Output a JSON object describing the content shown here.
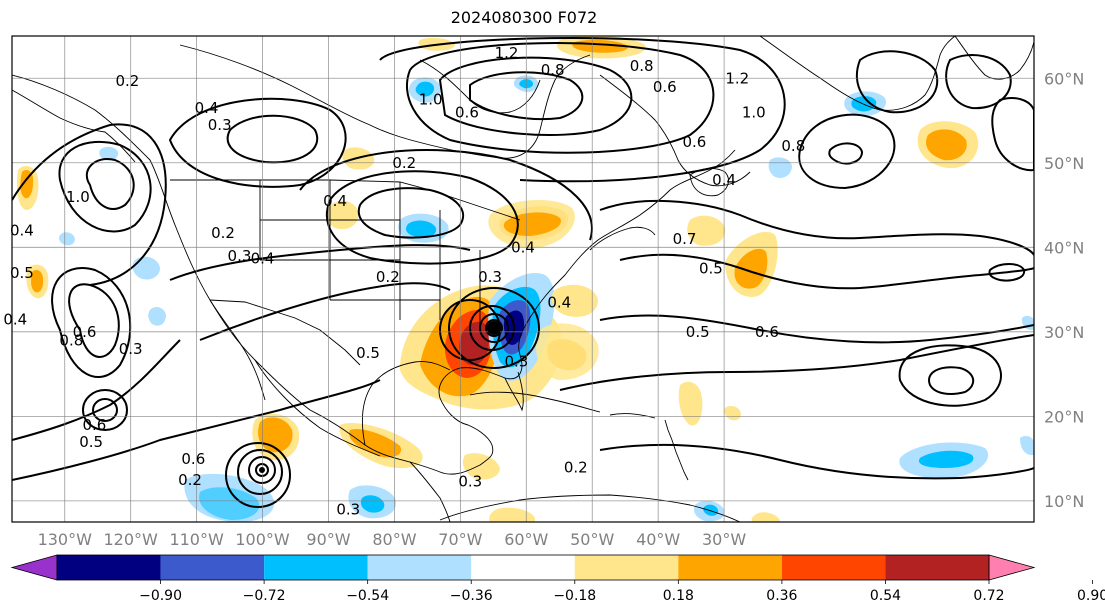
{
  "title": "2024080300 F072",
  "map": {
    "projection": "equirectangular",
    "lon_range": [
      -138,
      17
    ],
    "lat_range": [
      7.5,
      65
    ],
    "meridians": [
      -130,
      -120,
      -110,
      -100,
      -90,
      -80,
      -70,
      -60,
      -50,
      -40,
      -30
    ],
    "parallels": [
      10,
      20,
      30,
      40,
      50,
      60
    ],
    "lon_labels": [
      "130°W",
      "120°W",
      "110°W",
      "100°W",
      "90°W",
      "80°W",
      "70°W",
      "60°W",
      "50°W",
      "40°W",
      "30°W"
    ],
    "lat_labels": [
      "10°N",
      "20°N",
      "30°N",
      "40°N",
      "50°N",
      "60°N"
    ],
    "grid": true
  },
  "contour_labels": [
    {
      "text": "0.2",
      "lon": -120.5,
      "lat": 59.2
    },
    {
      "text": "0.4",
      "lon": -108.5,
      "lat": 56.0
    },
    {
      "text": "0.3",
      "lon": -106.5,
      "lat": 54.0
    },
    {
      "text": "0.2",
      "lon": -106.0,
      "lat": 41.2
    },
    {
      "text": "0.3",
      "lon": -103.5,
      "lat": 38.5
    },
    {
      "text": "0.4",
      "lon": -100.0,
      "lat": 38.2
    },
    {
      "text": "0.4",
      "lon": -136.5,
      "lat": 41.5
    },
    {
      "text": "0.5",
      "lon": -136.5,
      "lat": 36.5
    },
    {
      "text": "0.4",
      "lon": -137.5,
      "lat": 31.0
    },
    {
      "text": "0.8",
      "lon": -129.0,
      "lat": 28.5
    },
    {
      "text": "0.6",
      "lon": -127.0,
      "lat": 29.5
    },
    {
      "text": "0.3",
      "lon": -120.0,
      "lat": 27.5
    },
    {
      "text": "0.5",
      "lon": -126.0,
      "lat": 16.5
    },
    {
      "text": "0.6",
      "lon": -125.5,
      "lat": 18.5
    },
    {
      "text": "1.0",
      "lon": -128.0,
      "lat": 45.5
    },
    {
      "text": "0.4",
      "lon": -89.0,
      "lat": 45.0
    },
    {
      "text": "0.2",
      "lon": -78.5,
      "lat": 49.5
    },
    {
      "text": "0.6",
      "lon": -69.0,
      "lat": 55.5
    },
    {
      "text": "1.0",
      "lon": -74.5,
      "lat": 57.0
    },
    {
      "text": "1.2",
      "lon": -63.0,
      "lat": 62.5
    },
    {
      "text": "0.8",
      "lon": -56.0,
      "lat": 60.5
    },
    {
      "text": "0.4",
      "lon": -60.5,
      "lat": 39.5
    },
    {
      "text": "0.3",
      "lon": -65.5,
      "lat": 36.0
    },
    {
      "text": "0.4",
      "lon": -55.0,
      "lat": 33.0
    },
    {
      "text": "0.3",
      "lon": -61.5,
      "lat": 26.0
    },
    {
      "text": "0.2",
      "lon": -52.5,
      "lat": 13.5
    },
    {
      "text": "0.3",
      "lon": -68.5,
      "lat": 11.8
    },
    {
      "text": "0.3",
      "lon": -87.0,
      "lat": 8.5
    },
    {
      "text": "0.2",
      "lon": -81.0,
      "lat": 36.0
    },
    {
      "text": "0.5",
      "lon": -84.0,
      "lat": 27.0
    },
    {
      "text": "0.6",
      "lon": -110.5,
      "lat": 14.5
    },
    {
      "text": "0.2",
      "lon": -111.0,
      "lat": 12.0
    },
    {
      "text": "0.7",
      "lon": -36.0,
      "lat": 40.5
    },
    {
      "text": "0.5",
      "lon": -32.0,
      "lat": 37.0
    },
    {
      "text": "0.5",
      "lon": -34.0,
      "lat": 29.5
    },
    {
      "text": "0.6",
      "lon": -23.5,
      "lat": 29.5
    },
    {
      "text": "0.6",
      "lon": -34.5,
      "lat": 52.0
    },
    {
      "text": "0.4",
      "lon": -30.0,
      "lat": 47.5
    },
    {
      "text": "1.2",
      "lon": -28.0,
      "lat": 59.5
    },
    {
      "text": "1.0",
      "lon": -25.5,
      "lat": 55.5
    },
    {
      "text": "0.8",
      "lon": -19.5,
      "lat": 51.5
    },
    {
      "text": "0.8",
      "lon": -42.5,
      "lat": 61.0
    },
    {
      "text": "0.6",
      "lon": -39.0,
      "lat": 58.5
    }
  ],
  "colorbar": {
    "ticks": [
      "−0.90",
      "−0.72",
      "−0.54",
      "−0.36",
      "−0.18",
      "0.18",
      "0.36",
      "0.54",
      "0.72",
      "0.90"
    ],
    "colors": [
      "#9932cc",
      "#000080",
      "#3d5acc",
      "#00bfff",
      "#b0e0ff",
      "#ffffff",
      "#ffe68c",
      "#ffa500",
      "#ff4500",
      "#b22222",
      "#ff80b0"
    ],
    "extend": "both"
  },
  "colors": {
    "contour": "#000000",
    "coast": "#000000",
    "grid": "#808080"
  }
}
